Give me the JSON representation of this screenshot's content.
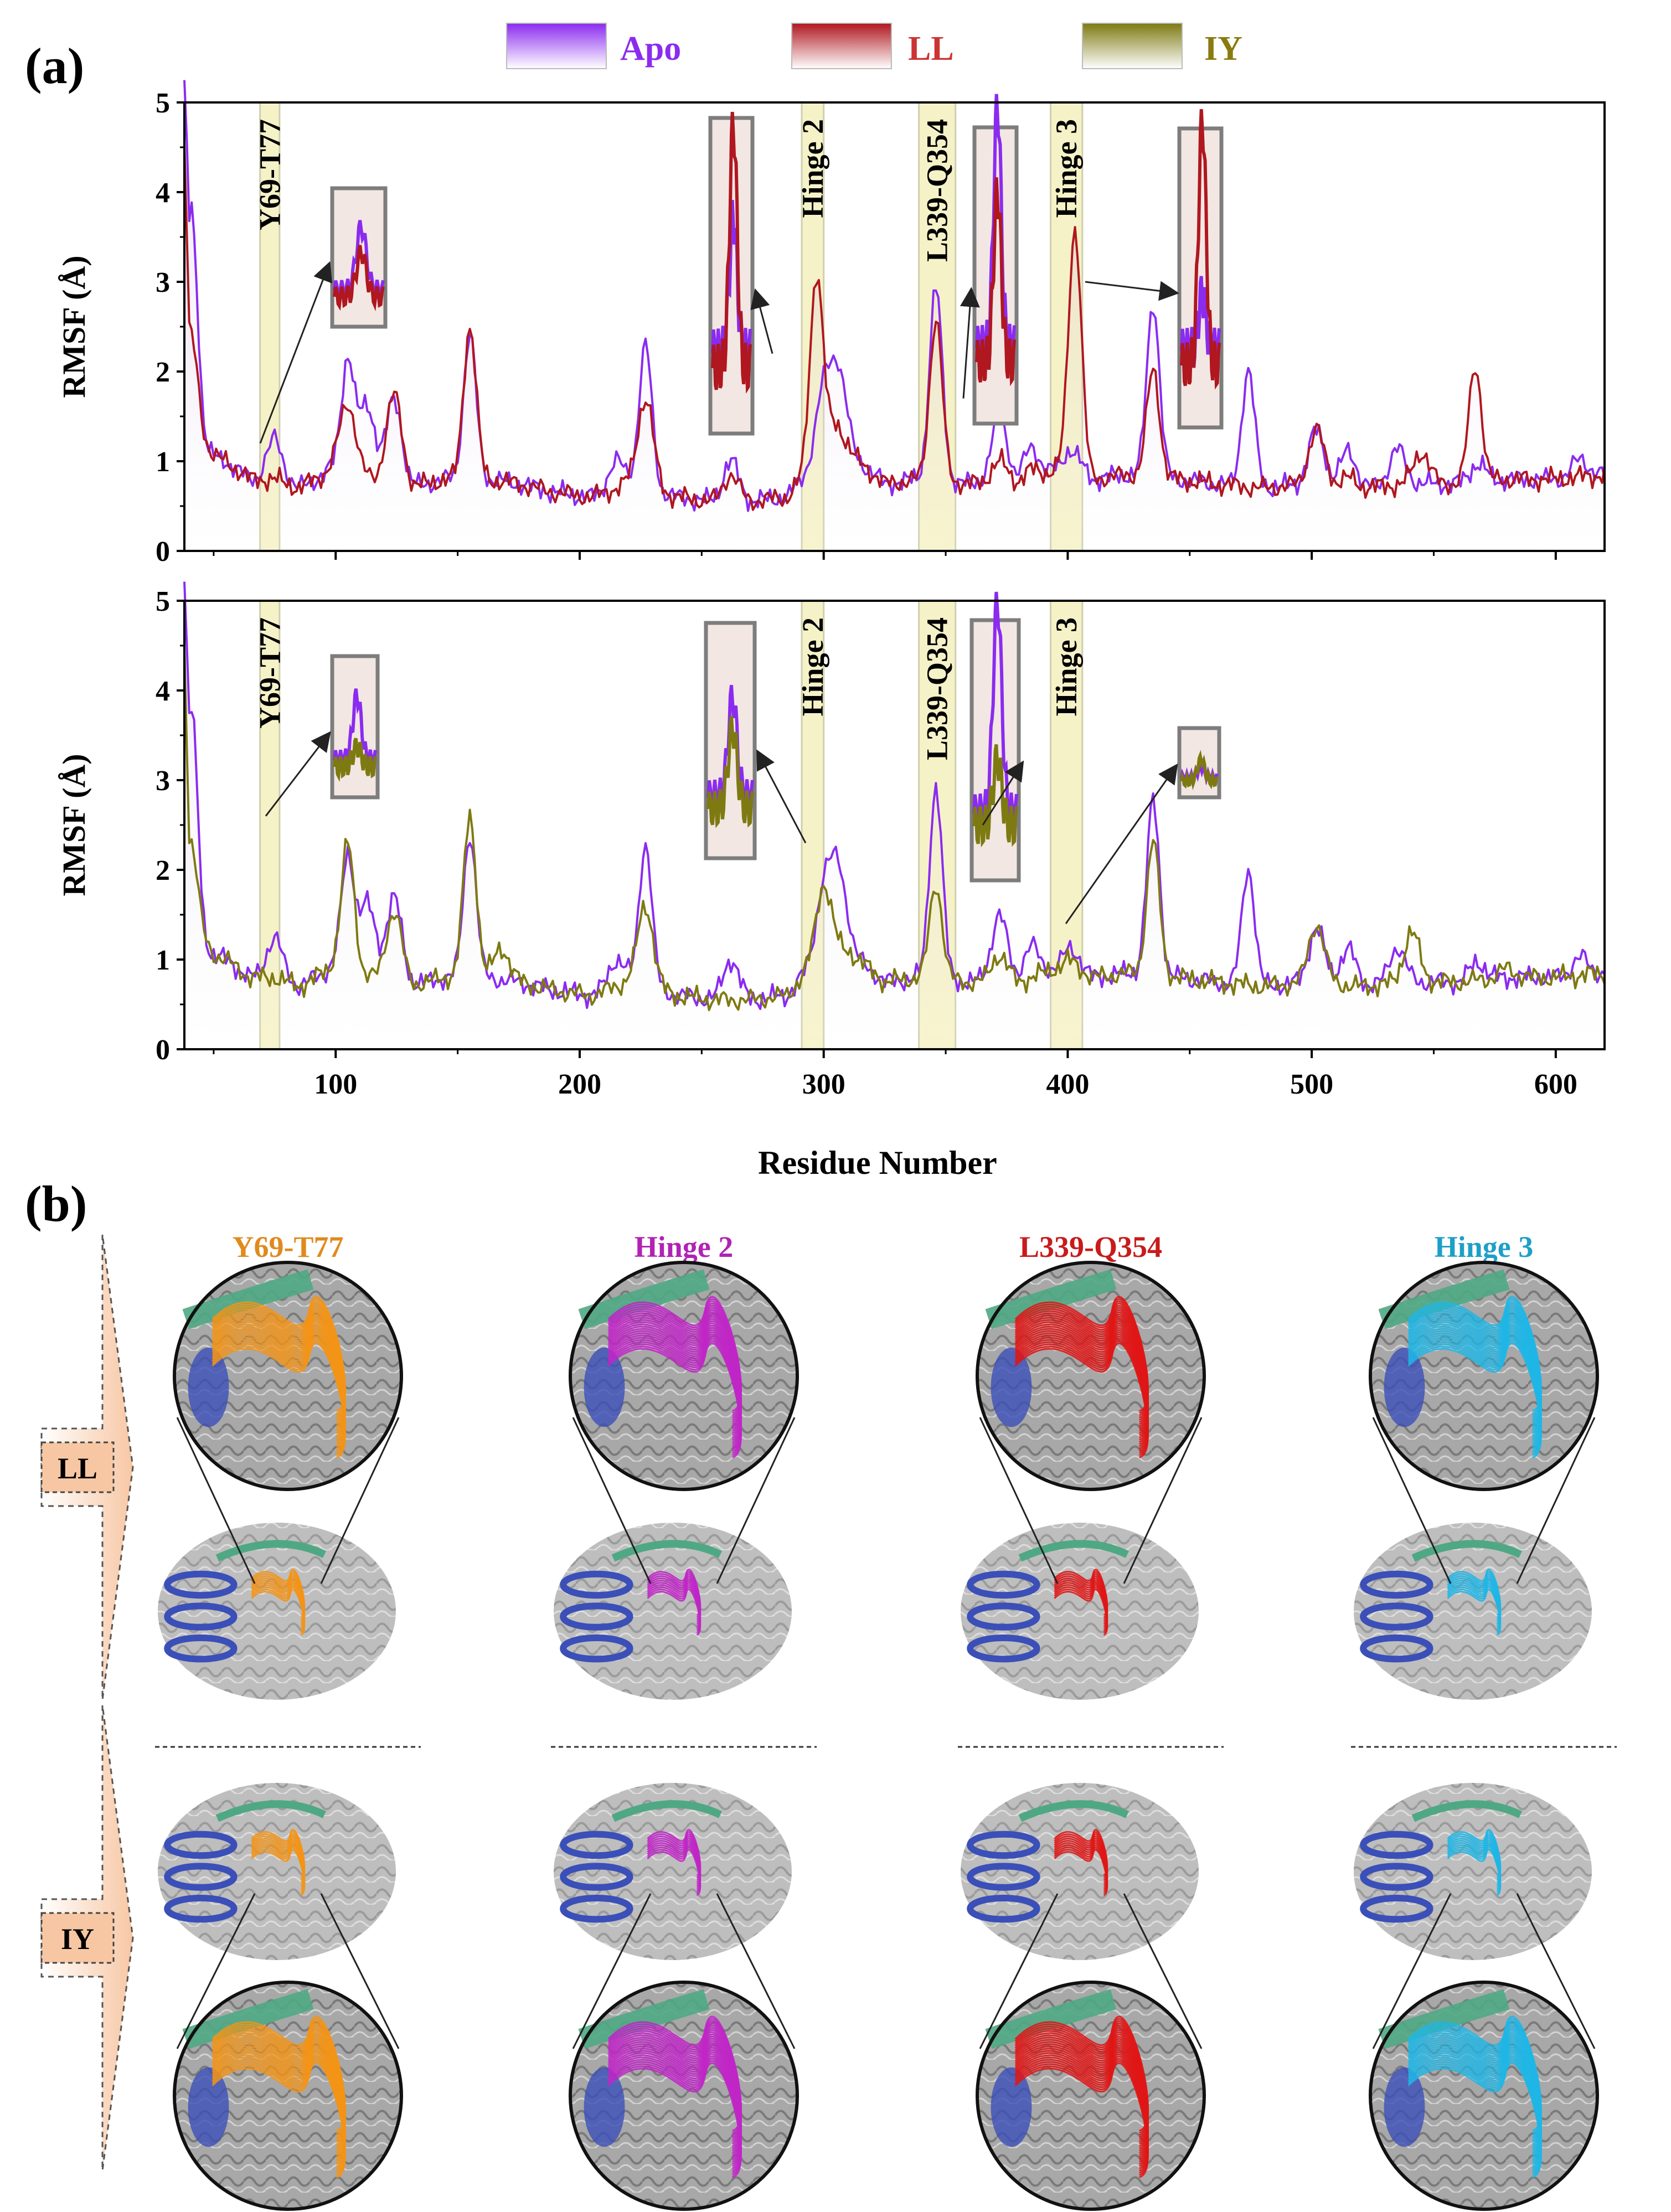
{
  "figure": {
    "panel_a_label": "(a)",
    "panel_b_label": "(b)",
    "colors": {
      "apo": "#8B2BF0",
      "ll": "#B0171F",
      "iy": "#7E7A12",
      "band": "#F6F2C8",
      "band_edge": "#CFCFAE",
      "inset_frame": "#7D7D7D"
    }
  },
  "legend": [
    {
      "key": "apo",
      "label": "Apo",
      "color": "#8B2BF0",
      "text_color": "#8B2BF0"
    },
    {
      "key": "ll",
      "label": "LL",
      "color": "#B0171F",
      "text_color": "#CC3333"
    },
    {
      "key": "iy",
      "label": "IY",
      "color": "#7E7A12",
      "text_color": "#8A7B10"
    }
  ],
  "chart_data": [
    {
      "type": "line",
      "panel": "top",
      "title": "",
      "xlabel": "Residue Number",
      "ylabel": "RMSF (Å)",
      "xlim": [
        38,
        620
      ],
      "ylim": [
        0,
        5
      ],
      "xticks": [
        100,
        200,
        300,
        400,
        500,
        600
      ],
      "yticks": [
        0,
        1,
        2,
        3,
        4,
        5
      ],
      "bands": [
        {
          "label": "Y69-T77",
          "start": 69,
          "end": 77
        },
        {
          "label": "Hinge 2",
          "start": 291,
          "end": 300
        },
        {
          "label": "L339-Q354",
          "start": 339,
          "end": 354
        },
        {
          "label": "Hinge 3",
          "start": 393,
          "end": 406
        }
      ],
      "baseline": [
        [
          38,
          4.0
        ],
        [
          40,
          1.6
        ],
        [
          45,
          1.1
        ],
        [
          55,
          1.0
        ],
        [
          65,
          0.8
        ],
        [
          75,
          0.8
        ],
        [
          85,
          0.7
        ],
        [
          95,
          0.85
        ],
        [
          100,
          0.95
        ],
        [
          115,
          0.8
        ],
        [
          130,
          0.7
        ],
        [
          145,
          0.8
        ],
        [
          160,
          0.8
        ],
        [
          175,
          0.75
        ],
        [
          190,
          0.65
        ],
        [
          205,
          0.6
        ],
        [
          220,
          0.75
        ],
        [
          240,
          0.6
        ],
        [
          255,
          0.55
        ],
        [
          270,
          0.55
        ],
        [
          285,
          0.6
        ],
        [
          300,
          1.1
        ],
        [
          310,
          1.1
        ],
        [
          325,
          0.75
        ],
        [
          340,
          0.8
        ],
        [
          360,
          0.75
        ],
        [
          380,
          0.75
        ],
        [
          400,
          0.95
        ],
        [
          410,
          0.8
        ],
        [
          425,
          0.85
        ],
        [
          445,
          0.8
        ],
        [
          460,
          0.75
        ],
        [
          480,
          0.7
        ],
        [
          500,
          0.75
        ],
        [
          520,
          0.7
        ],
        [
          540,
          0.75
        ],
        [
          560,
          0.75
        ],
        [
          580,
          0.8
        ],
        [
          600,
          0.8
        ],
        [
          620,
          0.85
        ]
      ],
      "series": [
        {
          "name": "Apo",
          "key": "apo",
          "extra": [
            [
              41,
              2.3
            ],
            [
              75,
              0.45
            ],
            [
              105,
              1.25
            ],
            [
              113,
              0.8
            ],
            [
              124,
              0.95
            ],
            [
              155,
              1.6
            ],
            [
              215,
              0.3
            ],
            [
              227,
              1.6
            ],
            [
              262,
              0.45
            ],
            [
              300,
              0.7
            ],
            [
              306,
              0.9
            ],
            [
              346,
              2.15
            ],
            [
              372,
              0.75
            ],
            [
              385,
              0.35
            ],
            [
              402,
              0.2
            ],
            [
              435,
              1.95
            ],
            [
              474,
              1.3
            ],
            [
              502,
              0.6
            ],
            [
              515,
              0.4
            ],
            [
              535,
              0.4
            ],
            [
              568,
              0.2
            ],
            [
              610,
              0.2
            ]
          ]
        },
        {
          "name": "LL",
          "key": "ll",
          "extra": [
            [
              41,
              0.9
            ],
            [
              105,
              0.75
            ],
            [
              124,
              1.0
            ],
            [
              155,
              1.7
            ],
            [
              227,
              1.0
            ],
            [
              262,
              0.3
            ],
            [
              297,
              2.1
            ],
            [
              305,
              0.3
            ],
            [
              346,
              1.8
            ],
            [
              372,
              0.25
            ],
            [
              385,
              0.1
            ],
            [
              403,
              2.7
            ],
            [
              435,
              1.2
            ],
            [
              502,
              0.6
            ],
            [
              515,
              0.1
            ],
            [
              545,
              0.35
            ],
            [
              567,
              1.3
            ]
          ]
        }
      ],
      "insets": [
        {
          "points_to": 72,
          "content": "Y69-T77 zoom: Apo above LL"
        },
        {
          "points_to": 295,
          "content": "Hinge 2 zoom: LL above Apo"
        },
        {
          "points_to": 346,
          "content": "L339-Q354 zoom: Apo above LL"
        },
        {
          "points_to": 403,
          "content": "Hinge 3 zoom: LL above Apo"
        }
      ]
    },
    {
      "type": "line",
      "panel": "bottom",
      "title": "",
      "xlabel": "Residue Number",
      "ylabel": "RMSF (Å)",
      "xlim": [
        38,
        620
      ],
      "ylim": [
        0,
        5
      ],
      "xticks": [
        100,
        200,
        300,
        400,
        500,
        600
      ],
      "yticks": [
        0,
        1,
        2,
        3,
        4,
        5
      ],
      "bands": [
        {
          "label": "Y69-T77",
          "start": 69,
          "end": 77
        },
        {
          "label": "Hinge 2",
          "start": 291,
          "end": 300
        },
        {
          "label": "L339-Q354",
          "start": 339,
          "end": 354
        },
        {
          "label": "Hinge 3",
          "start": 393,
          "end": 406
        }
      ],
      "baseline": [
        [
          38,
          4.0
        ],
        [
          40,
          1.6
        ],
        [
          45,
          1.1
        ],
        [
          55,
          1.0
        ],
        [
          65,
          0.8
        ],
        [
          75,
          0.8
        ],
        [
          85,
          0.7
        ],
        [
          95,
          0.85
        ],
        [
          100,
          0.95
        ],
        [
          115,
          0.8
        ],
        [
          130,
          0.7
        ],
        [
          145,
          0.8
        ],
        [
          160,
          0.8
        ],
        [
          175,
          0.75
        ],
        [
          190,
          0.65
        ],
        [
          205,
          0.6
        ],
        [
          220,
          0.75
        ],
        [
          240,
          0.6
        ],
        [
          255,
          0.55
        ],
        [
          270,
          0.55
        ],
        [
          285,
          0.6
        ],
        [
          300,
          1.1
        ],
        [
          310,
          1.1
        ],
        [
          325,
          0.75
        ],
        [
          340,
          0.8
        ],
        [
          360,
          0.75
        ],
        [
          380,
          0.75
        ],
        [
          400,
          0.95
        ],
        [
          410,
          0.8
        ],
        [
          425,
          0.85
        ],
        [
          445,
          0.8
        ],
        [
          460,
          0.75
        ],
        [
          480,
          0.7
        ],
        [
          500,
          0.75
        ],
        [
          520,
          0.7
        ],
        [
          540,
          0.75
        ],
        [
          560,
          0.75
        ],
        [
          580,
          0.8
        ],
        [
          600,
          0.8
        ],
        [
          620,
          0.85
        ]
      ],
      "series": [
        {
          "name": "Apo",
          "key": "apo",
          "extra": [
            [
              41,
              2.3
            ],
            [
              75,
              0.45
            ],
            [
              105,
              1.25
            ],
            [
              113,
              0.8
            ],
            [
              124,
              0.95
            ],
            [
              155,
              1.6
            ],
            [
              215,
              0.3
            ],
            [
              227,
              1.6
            ],
            [
              262,
              0.45
            ],
            [
              300,
              0.7
            ],
            [
              306,
              0.9
            ],
            [
              346,
              2.15
            ],
            [
              372,
              0.75
            ],
            [
              385,
              0.35
            ],
            [
              402,
              0.2
            ],
            [
              435,
              1.95
            ],
            [
              474,
              1.3
            ],
            [
              502,
              0.6
            ],
            [
              515,
              0.4
            ],
            [
              535,
              0.4
            ],
            [
              568,
              0.2
            ],
            [
              610,
              0.2
            ]
          ]
        },
        {
          "name": "IY",
          "key": "iy",
          "extra": [
            [
              41,
              0.8
            ],
            [
              105,
              1.4
            ],
            [
              124,
              0.8
            ],
            [
              155,
              1.8
            ],
            [
              168,
              0.35
            ],
            [
              227,
              0.9
            ],
            [
              300,
              0.75
            ],
            [
              346,
              1.05
            ],
            [
              372,
              0.3
            ],
            [
              402,
              0.05
            ],
            [
              435,
              1.5
            ],
            [
              502,
              0.65
            ],
            [
              541,
              0.55
            ],
            [
              580,
              0.1
            ]
          ]
        }
      ],
      "insets": [
        {
          "points_to": 72,
          "content": "Y69-T77 zoom: Apo above IY"
        },
        {
          "points_to": 295,
          "content": "Hinge 2 zoom: Apo above IY"
        },
        {
          "points_to": 346,
          "content": "L339-Q354 zoom: Apo above IY"
        },
        {
          "points_to": 403,
          "content": "Hinge 3 zoom: Apo close to IY"
        }
      ]
    }
  ],
  "panel_b": {
    "row_labels": [
      "LL",
      "IY"
    ],
    "columns": [
      {
        "title": "Y69-T77",
        "title_color": "#E08A1E",
        "highlight": "#F39416"
      },
      {
        "title": "Hinge 2",
        "title_color": "#B023B3",
        "highlight": "#C026C6"
      },
      {
        "title": "L339-Q354",
        "title_color": "#C81B1B",
        "highlight": "#E01616"
      },
      {
        "title": "Hinge 3",
        "title_color": "#1E9FC8",
        "highlight": "#1FB6E6"
      }
    ]
  }
}
